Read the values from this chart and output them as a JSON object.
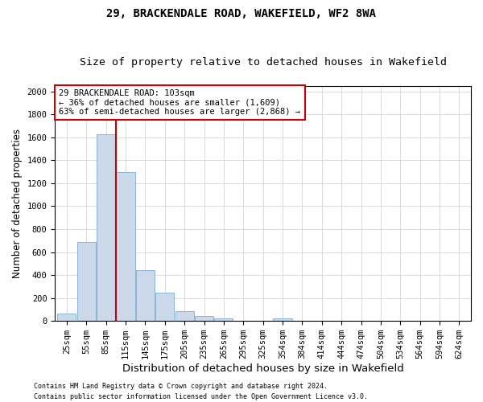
{
  "title1": "29, BRACKENDALE ROAD, WAKEFIELD, WF2 8WA",
  "title2": "Size of property relative to detached houses in Wakefield",
  "xlabel": "Distribution of detached houses by size in Wakefield",
  "ylabel": "Number of detached properties",
  "categories": [
    "25sqm",
    "55sqm",
    "85sqm",
    "115sqm",
    "145sqm",
    "175sqm",
    "205sqm",
    "235sqm",
    "265sqm",
    "295sqm",
    "325sqm",
    "354sqm",
    "384sqm",
    "414sqm",
    "444sqm",
    "474sqm",
    "504sqm",
    "534sqm",
    "564sqm",
    "594sqm",
    "624sqm"
  ],
  "values": [
    65,
    690,
    1625,
    1300,
    440,
    250,
    85,
    45,
    25,
    0,
    0,
    25,
    0,
    0,
    0,
    0,
    0,
    0,
    0,
    0,
    0
  ],
  "bar_color": "#ccd9ea",
  "bar_edge_color": "#7aacce",
  "vline_color": "#cc0000",
  "vline_pos": 2.5,
  "annotation_text": "29 BRACKENDALE ROAD: 103sqm\n← 36% of detached houses are smaller (1,609)\n63% of semi-detached houses are larger (2,868) →",
  "annotation_box_color": "#cc0000",
  "ylim": [
    0,
    2050
  ],
  "yticks": [
    0,
    200,
    400,
    600,
    800,
    1000,
    1200,
    1400,
    1600,
    1800,
    2000
  ],
  "footer1": "Contains HM Land Registry data © Crown copyright and database right 2024.",
  "footer2": "Contains public sector information licensed under the Open Government Licence v3.0.",
  "bg_color": "#ffffff",
  "grid_color": "#cccccc",
  "title1_fontsize": 10,
  "title2_fontsize": 9.5,
  "tick_fontsize": 7.5,
  "ylabel_fontsize": 8.5,
  "xlabel_fontsize": 9.5,
  "annotation_fontsize": 7.5,
  "footer_fontsize": 6
}
